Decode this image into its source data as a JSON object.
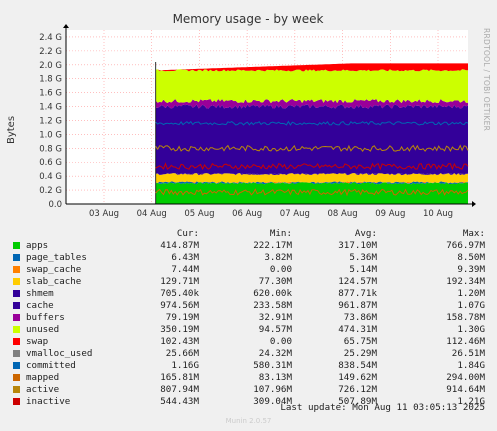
{
  "chart_data": {
    "type": "area",
    "title": "Memory usage - by week",
    "ylabel": "Bytes",
    "side_label": "RRDTOOL / TOBI OETIKER",
    "y_ticks": [
      "0.0",
      "0.2 G",
      "0.4 G",
      "0.6 G",
      "0.8 G",
      "1.0 G",
      "1.2 G",
      "1.4 G",
      "1.6 G",
      "1.8 G",
      "2.0 G",
      "2.2 G",
      "2.4 G"
    ],
    "ylim": [
      0,
      2.5
    ],
    "x_ticks": [
      "03 Aug",
      "04 Aug",
      "05 Aug",
      "06 Aug",
      "07 Aug",
      "08 Aug",
      "09 Aug",
      "10 Aug"
    ],
    "data_start": "04 Aug",
    "stack_top_start": 1.92,
    "stack_top_end": 2.02,
    "series": [
      {
        "name": "apps",
        "color": "#00cc00",
        "approx_level": 0.3
      },
      {
        "name": "page_tables",
        "color": "#0066b3",
        "approx_level": 0.31
      },
      {
        "name": "swap_cache",
        "color": "#ff8000",
        "approx_level": 0.31
      },
      {
        "name": "slab_cache",
        "color": "#ffcc00",
        "approx_level": 0.43
      },
      {
        "name": "shmem",
        "color": "#330099",
        "approx_level": 0.43
      },
      {
        "name": "cache",
        "color": "#330099",
        "approx_level": 1.4
      },
      {
        "name": "buffers",
        "color": "#990099",
        "approx_level": 1.48
      },
      {
        "name": "unused",
        "color": "#ccff00",
        "approx_level": 1.92
      },
      {
        "name": "swap",
        "color": "#ff0000",
        "approx_level": 2.02
      }
    ],
    "line_series": [
      {
        "name": "committed",
        "color": "#0066b3",
        "approx_level": 1.16
      },
      {
        "name": "mapped",
        "color": "#cc6600",
        "approx_level": 0.17
      },
      {
        "name": "active",
        "color": "#b8860b",
        "approx_level": 0.8
      },
      {
        "name": "inactive",
        "color": "#cc0000",
        "approx_level": 0.54
      }
    ]
  },
  "legend": {
    "headers": {
      "cur": "Cur:",
      "min": "Min:",
      "avg": "Avg:",
      "max": "Max:"
    },
    "rows": [
      {
        "name": "apps",
        "color": "#00cc00",
        "cur": "414.87M",
        "min": "222.17M",
        "avg": "317.10M",
        "max": "766.97M"
      },
      {
        "name": "page_tables",
        "color": "#0066b3",
        "cur": "6.43M",
        "min": "3.82M",
        "avg": "5.36M",
        "max": "8.50M"
      },
      {
        "name": "swap_cache",
        "color": "#ff8000",
        "cur": "7.44M",
        "min": "0.00",
        "avg": "5.14M",
        "max": "9.39M"
      },
      {
        "name": "slab_cache",
        "color": "#ffcc00",
        "cur": "129.71M",
        "min": "77.30M",
        "avg": "124.57M",
        "max": "192.34M"
      },
      {
        "name": "shmem",
        "color": "#330099",
        "cur": "705.40k",
        "min": "620.00k",
        "avg": "877.71k",
        "max": "1.20M"
      },
      {
        "name": "cache",
        "color": "#330099",
        "cur": "974.56M",
        "min": "233.58M",
        "avg": "961.87M",
        "max": "1.07G"
      },
      {
        "name": "buffers",
        "color": "#990099",
        "cur": "79.19M",
        "min": "32.91M",
        "avg": "73.86M",
        "max": "158.78M"
      },
      {
        "name": "unused",
        "color": "#ccff00",
        "cur": "350.19M",
        "min": "94.57M",
        "avg": "474.31M",
        "max": "1.30G"
      },
      {
        "name": "swap",
        "color": "#ff0000",
        "cur": "102.43M",
        "min": "0.00",
        "avg": "65.75M",
        "max": "112.46M"
      },
      {
        "name": "vmalloc_used",
        "color": "#808080",
        "cur": "25.66M",
        "min": "24.32M",
        "avg": "25.29M",
        "max": "26.51M"
      },
      {
        "name": "committed",
        "color": "#0066b3",
        "cur": "1.16G",
        "min": "580.31M",
        "avg": "838.54M",
        "max": "1.84G"
      },
      {
        "name": "mapped",
        "color": "#cc6600",
        "cur": "165.81M",
        "min": "83.13M",
        "avg": "149.62M",
        "max": "294.00M"
      },
      {
        "name": "active",
        "color": "#b8860b",
        "cur": "807.94M",
        "min": "107.96M",
        "avg": "726.12M",
        "max": "914.64M"
      },
      {
        "name": "inactive",
        "color": "#cc0000",
        "cur": "544.43M",
        "min": "309.04M",
        "avg": "507.89M",
        "max": "1.21G"
      }
    ]
  },
  "footer": {
    "last_update": "Last update: Mon Aug 11 03:05:13 2025",
    "munin": "Munin 2.0.57"
  }
}
